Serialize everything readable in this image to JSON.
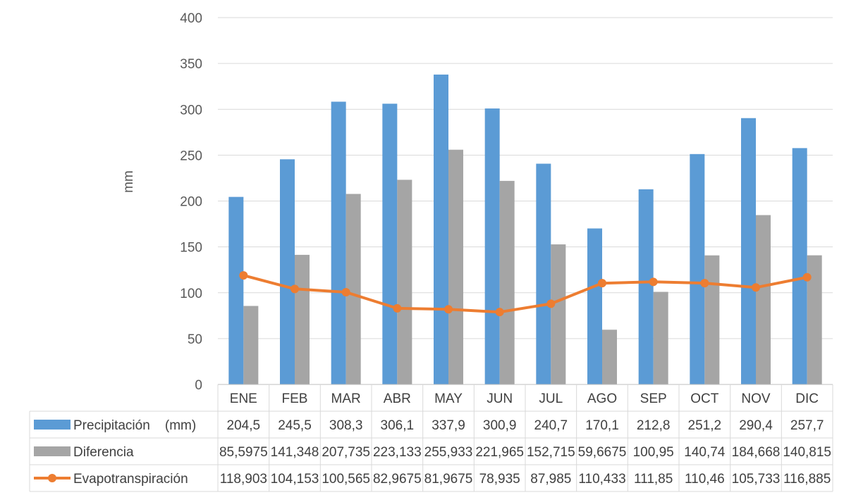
{
  "chart_data": {
    "type": "bar",
    "ylabel": "mm",
    "ylim": [
      0,
      400
    ],
    "yticks": [
      "0",
      "50",
      "100",
      "150",
      "200",
      "250",
      "300",
      "350",
      "400"
    ],
    "grid": true,
    "legend": "data-table",
    "categories": [
      "ENE",
      "FEB",
      "MAR",
      "ABR",
      "MAY",
      "JUN",
      "JUL",
      "AGO",
      "SEP",
      "OCT",
      "NOV",
      "DIC"
    ],
    "series": [
      {
        "name": "Precipitación    (mm)",
        "kind": "bar",
        "color": "#5B9BD5",
        "values": [
          204.5,
          245.5,
          308.3,
          306.1,
          337.9,
          300.9,
          240.7,
          170.1,
          212.8,
          251.2,
          290.4,
          257.7
        ],
        "labels": [
          "204,5",
          "245,5",
          "308,3",
          "306,1",
          "337,9",
          "300,9",
          "240,7",
          "170,1",
          "212,8",
          "251,2",
          "290,4",
          "257,7"
        ]
      },
      {
        "name": "Diferencia",
        "kind": "bar",
        "color": "#A5A5A5",
        "values": [
          85.5975,
          141.348,
          207.735,
          223.133,
          255.933,
          221.965,
          152.715,
          59.6675,
          100.95,
          140.74,
          184.668,
          140.815
        ],
        "labels": [
          "85,5975",
          "141,348",
          "207,735",
          "223,133",
          "255,933",
          "221,965",
          "152,715",
          "59,6675",
          "100,95",
          "140,74",
          "184,668",
          "140,815"
        ]
      },
      {
        "name": "Evapotranspiración",
        "kind": "line",
        "color": "#ED7D31",
        "values": [
          118.903,
          104.153,
          100.565,
          82.9675,
          81.9675,
          78.935,
          87.985,
          110.433,
          111.85,
          110.46,
          105.733,
          116.885
        ],
        "labels": [
          "118,903",
          "104,153",
          "100,565",
          "82,9675",
          "81,9675",
          "78,935",
          "87,985",
          "110,433",
          "111,85",
          "110,46",
          "105,733",
          "116,885"
        ]
      }
    ]
  }
}
